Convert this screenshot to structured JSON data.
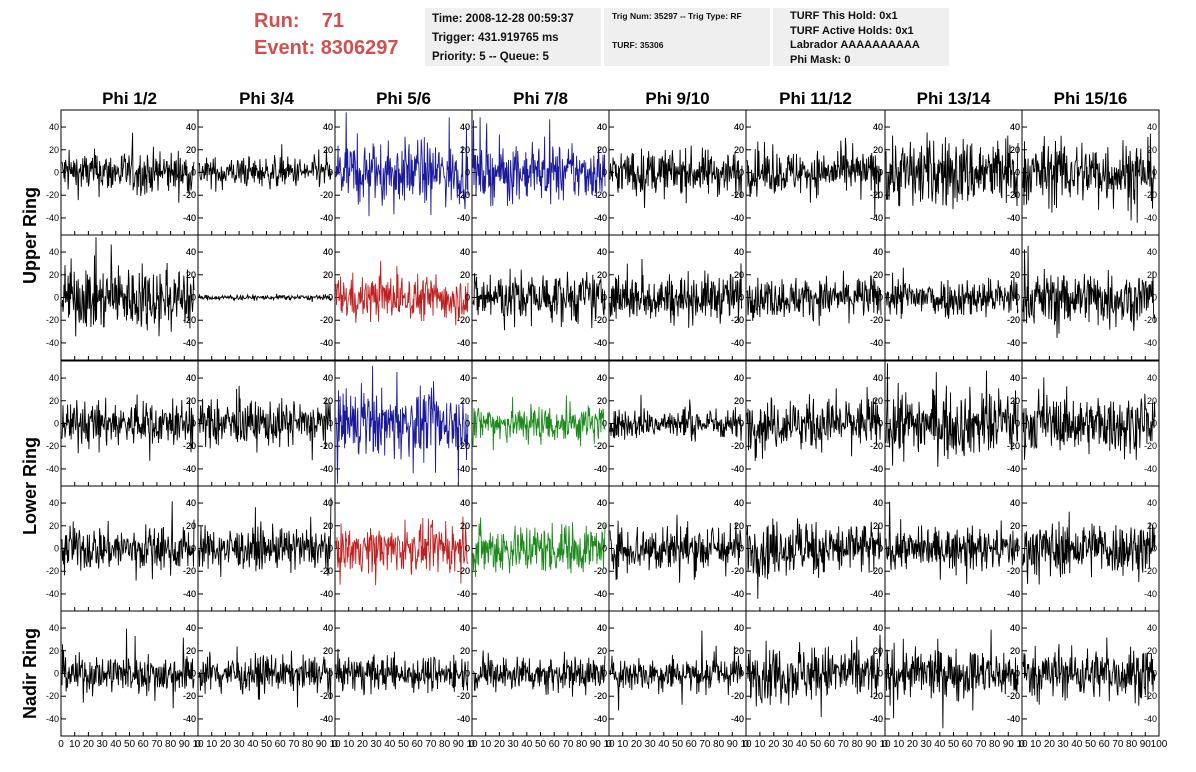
{
  "header": {
    "run_label": "Run:",
    "run_value": "71",
    "event_label": "Event:",
    "event_value": "8306297",
    "time": "Time: 2008-12-28 00:59:37",
    "trigger": "Trigger: 431.919765 ms",
    "priority": "Priority: 5 -- Queue: 5",
    "trig_num": "Trig Num: 35297 -- Trig Type: RF",
    "turf": "TURF: 35306",
    "turf_hold": "TURF This Hold: 0x1",
    "turf_active": "TURF Active Holds: 0x1",
    "labrador": "Labrador AAAAAAAAAA",
    "phi_mask": "Phi Mask: 0"
  },
  "colors": {
    "trace_default": "#000000",
    "trace_blue": "#1a1a9a",
    "trace_red": "#c02020",
    "trace_green": "#1a8a1a",
    "header_accent": "#d05050",
    "info_box_bg": "#efefef"
  },
  "chart_data": {
    "type": "line",
    "columns": [
      "Phi 1/2",
      "Phi 3/4",
      "Phi 5/6",
      "Phi 7/8",
      "Phi 9/10",
      "Phi 11/12",
      "Phi 13/14",
      "Phi 15/16"
    ],
    "ring_labels": [
      "Upper Ring",
      "Lower Ring",
      "Nadir Ring"
    ],
    "rows": 5,
    "xlim": [
      0,
      100
    ],
    "ylim": [
      -55,
      55
    ],
    "x_ticks": [
      0,
      10,
      20,
      30,
      40,
      50,
      60,
      70,
      80,
      90,
      100
    ],
    "x_tick_labels": [
      "0",
      "10",
      "20",
      "30",
      "40",
      "50",
      "60",
      "70",
      "80",
      "90",
      "100"
    ],
    "x_tick_labels_last_col": [
      "0",
      "10",
      "20",
      "30",
      "40",
      "50",
      "60",
      "70",
      "80",
      "90",
      "100"
    ],
    "x_tick_labels_other": [
      "0",
      "10",
      "20",
      "30",
      "40",
      "50",
      "60",
      "70",
      "80",
      "90",
      "10"
    ],
    "y_ticks": [
      -40,
      -20,
      0,
      20,
      40
    ],
    "y_tick_labels": [
      "-40",
      "-20",
      "0",
      "20",
      "40"
    ],
    "panels": [
      [
        {
          "amp": 17,
          "color": "black"
        },
        {
          "amp": 12,
          "color": "black"
        },
        {
          "amp": 25,
          "color": "blue"
        },
        {
          "amp": 22,
          "color": "blue"
        },
        {
          "amp": 18,
          "color": "black"
        },
        {
          "amp": 17,
          "color": "black"
        },
        {
          "amp": 28,
          "color": "black"
        },
        {
          "amp": 26,
          "color": "black"
        }
      ],
      [
        {
          "amp": 26,
          "color": "black"
        },
        {
          "amp": 2,
          "color": "black"
        },
        {
          "amp": 18,
          "color": "red"
        },
        {
          "amp": 20,
          "color": "black"
        },
        {
          "amp": 19,
          "color": "black"
        },
        {
          "amp": 16,
          "color": "black"
        },
        {
          "amp": 16,
          "color": "black"
        },
        {
          "amp": 22,
          "color": "black"
        }
      ],
      [
        {
          "amp": 18,
          "color": "black"
        },
        {
          "amp": 18,
          "color": "black"
        },
        {
          "amp": 26,
          "color": "blue"
        },
        {
          "amp": 16,
          "color": "green"
        },
        {
          "amp": 12,
          "color": "black"
        },
        {
          "amp": 20,
          "color": "black"
        },
        {
          "amp": 26,
          "color": "black"
        },
        {
          "amp": 22,
          "color": "black"
        }
      ],
      [
        {
          "amp": 18,
          "color": "black"
        },
        {
          "amp": 16,
          "color": "black"
        },
        {
          "amp": 18,
          "color": "red"
        },
        {
          "amp": 20,
          "color": "green"
        },
        {
          "amp": 20,
          "color": "black"
        },
        {
          "amp": 22,
          "color": "black"
        },
        {
          "amp": 16,
          "color": "black"
        },
        {
          "amp": 22,
          "color": "black"
        }
      ],
      [
        {
          "amp": 16,
          "color": "black"
        },
        {
          "amp": 14,
          "color": "black"
        },
        {
          "amp": 14,
          "color": "black"
        },
        {
          "amp": 14,
          "color": "black"
        },
        {
          "amp": 14,
          "color": "black"
        },
        {
          "amp": 22,
          "color": "black"
        },
        {
          "amp": 20,
          "color": "black"
        },
        {
          "amp": 20,
          "color": "black"
        }
      ]
    ]
  }
}
